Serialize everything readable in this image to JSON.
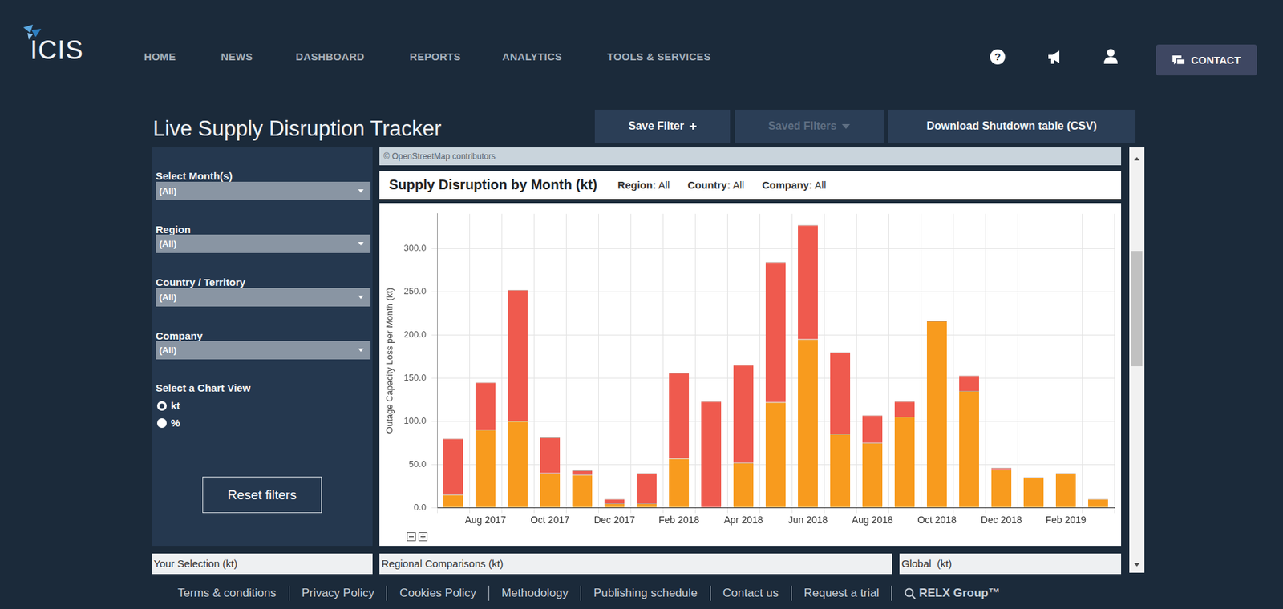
{
  "header": {
    "logo": "ICIS",
    "nav": [
      "HOME",
      "NEWS",
      "DASHBOARD",
      "REPORTS",
      "ANALYTICS",
      "TOOLS & SERVICES"
    ],
    "help": "?",
    "contact": "CONTACT"
  },
  "page_title": "Live Supply Disruption Tracker",
  "buttons": [
    "Save Filter",
    "Saved Filters",
    "Download Shutdown table (CSV)"
  ],
  "filters": [
    {
      "label": "Select Month(s)",
      "value": "(All)"
    },
    {
      "label": "Region",
      "value": "(All)"
    },
    {
      "label": "Country / Territory",
      "value": "(All)"
    },
    {
      "label": "Company",
      "value": "(All)"
    }
  ],
  "chart_view": {
    "label": "Select a Chart View",
    "options": [
      "kt",
      "%"
    ],
    "selected": "kt"
  },
  "reset": "Reset filters",
  "map_credit": "© OpenStreetMap contributors",
  "chart_filters": [
    {
      "label": "Region:",
      "value": "All"
    },
    {
      "label": "Country:",
      "value": "All"
    },
    {
      "label": "Company:",
      "value": "All"
    }
  ],
  "chart_data": {
    "type": "bar",
    "title": "Supply Disruption by Month (kt)",
    "y_label": "Outage Capacity Loss per Month (kt)",
    "stacked": true,
    "grid": true,
    "categories": [
      null,
      "Aug 2017",
      null,
      "Oct 2017",
      null,
      "Dec 2017",
      null,
      "Feb 2018",
      null,
      "Apr 2018",
      null,
      "Jun 2018",
      null,
      "Aug 2018",
      null,
      "Oct 2018",
      null,
      "Dec 2018",
      null,
      "Feb 2019",
      null
    ],
    "series": [
      {
        "color": "#f89b1e",
        "values": [
          15,
          90,
          100,
          40,
          38,
          5,
          5,
          57,
          0,
          52,
          122,
          195,
          85,
          75,
          105,
          216,
          135,
          44,
          35,
          40,
          10
        ]
      },
      {
        "color": "#ef5a4e",
        "values": [
          65,
          55,
          152,
          42,
          5,
          5,
          35,
          99,
          123,
          113,
          162,
          132,
          95,
          32,
          18,
          0,
          18,
          2,
          0,
          0,
          0
        ]
      }
    ],
    "ylim": [
      0,
      340
    ],
    "yticks": [
      {
        "value": 0,
        "label": "0.0"
      },
      {
        "value": 50,
        "label": "50.0"
      },
      {
        "value": 100,
        "label": "100.0"
      },
      {
        "value": 150,
        "label": "150.0"
      },
      {
        "value": 200,
        "label": "200.0"
      },
      {
        "value": 250,
        "label": "250.0"
      },
      {
        "value": 300,
        "label": "300.0"
      }
    ]
  },
  "panels": [
    "Your Selection (kt)",
    "Regional Comparisons (kt)",
    "Global  (kt)"
  ],
  "footer": [
    "Terms & conditions",
    "Privacy Policy",
    "Cookies Policy",
    "Methodology",
    "Publishing schedule",
    "Contact us",
    "Request a trial",
    "RELX Group™"
  ]
}
